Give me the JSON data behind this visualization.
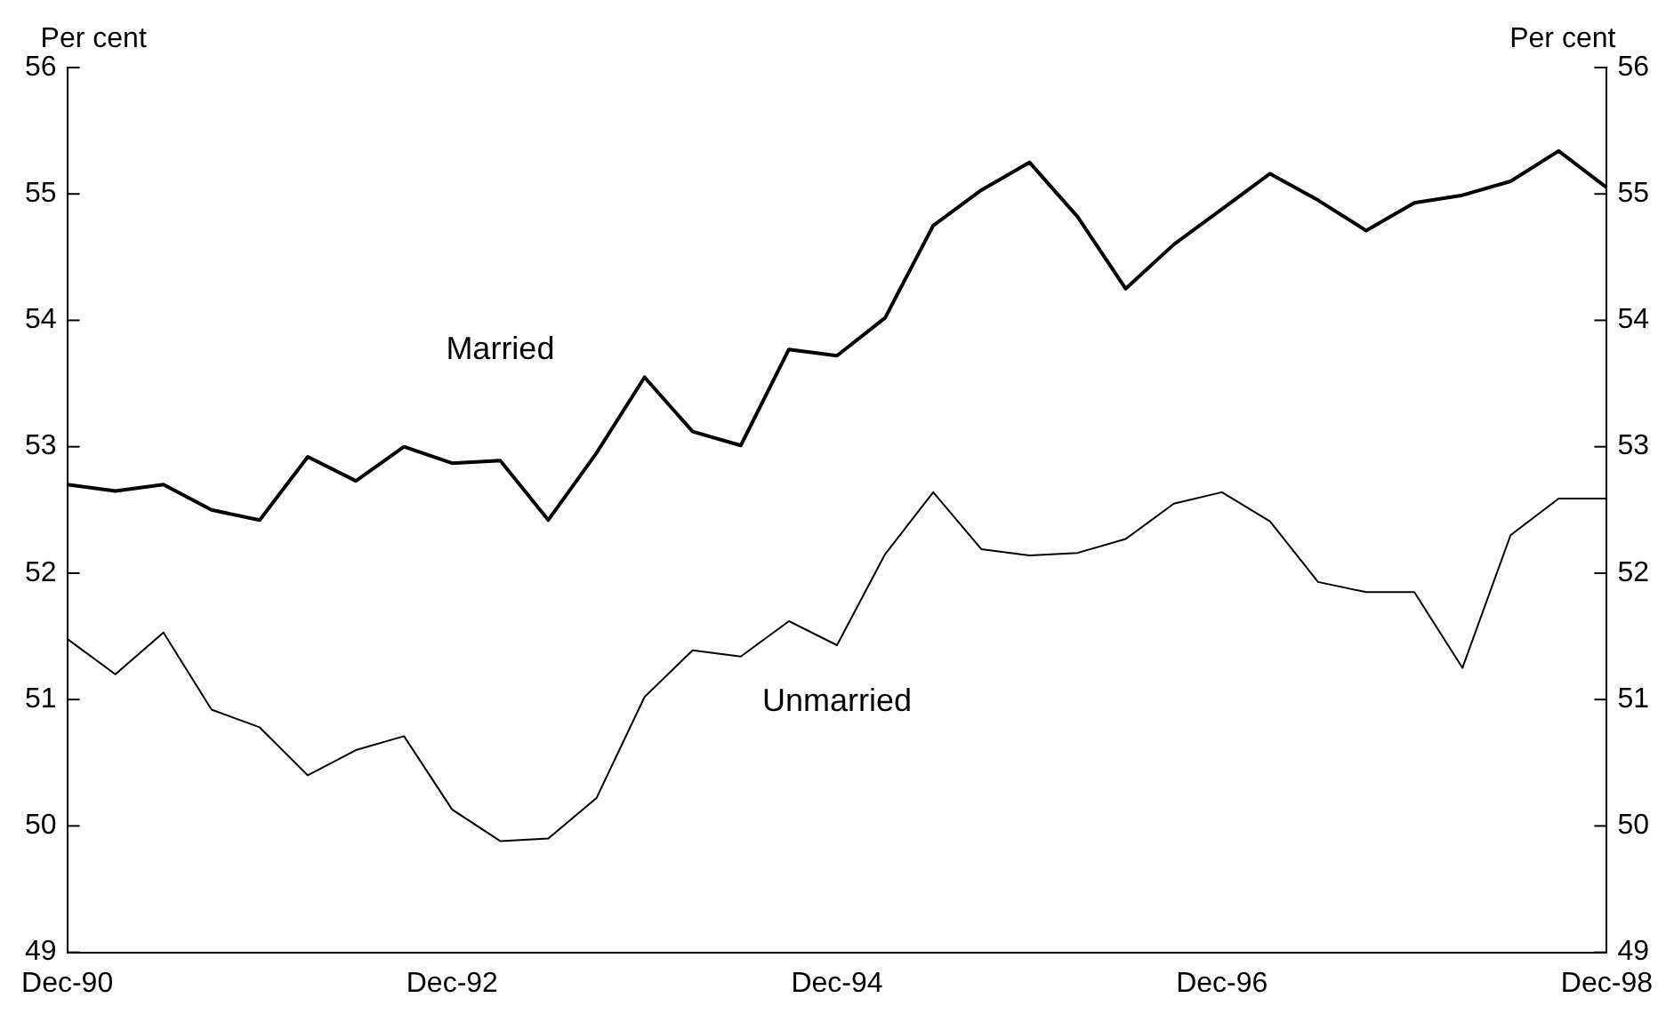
{
  "chart_data": {
    "type": "line",
    "ylabel": "Per cent",
    "y2label": "Per cent",
    "categories": [
      "Dec-90",
      null,
      null,
      null,
      null,
      null,
      null,
      null,
      "Dec-92",
      null,
      null,
      null,
      null,
      null,
      null,
      null,
      "Dec-94",
      null,
      null,
      null,
      null,
      null,
      null,
      null,
      "Dec-96",
      null,
      null,
      null,
      null,
      null,
      null,
      null,
      "Dec-98"
    ],
    "series": [
      {
        "name": "Married",
        "color": "#000000",
        "values": [
          52.7,
          52.65,
          52.7,
          52.5,
          52.42,
          52.92,
          52.73,
          53.0,
          52.87,
          52.89,
          52.42,
          52.95,
          53.55,
          53.12,
          53.01,
          53.77,
          53.72,
          54.02,
          54.75,
          55.03,
          55.25,
          54.82,
          54.25,
          54.6,
          54.88,
          55.16,
          54.95,
          54.71,
          54.93,
          54.99,
          55.1,
          55.34,
          55.05
        ]
      },
      {
        "name": "Unmarried",
        "color": "#000000",
        "values": [
          51.48,
          51.2,
          51.53,
          50.92,
          50.78,
          50.4,
          50.6,
          50.71,
          50.13,
          49.88,
          49.9,
          50.22,
          51.02,
          51.39,
          51.34,
          51.62,
          51.43,
          52.15,
          52.64,
          52.19,
          52.14,
          52.16,
          52.27,
          52.55,
          52.64,
          52.41,
          51.93,
          51.85,
          51.85,
          51.25,
          52.3,
          52.59,
          52.59
        ]
      }
    ],
    "ylim": [
      49,
      56
    ],
    "yticks": [
      49,
      50,
      51,
      52,
      53,
      54,
      55,
      56
    ],
    "y2lim": [
      49,
      56
    ],
    "y2ticks": [
      49,
      50,
      51,
      52,
      53,
      54,
      55,
      56
    ],
    "grid": false,
    "legend": false,
    "marker": "none",
    "line_style": "solid"
  }
}
